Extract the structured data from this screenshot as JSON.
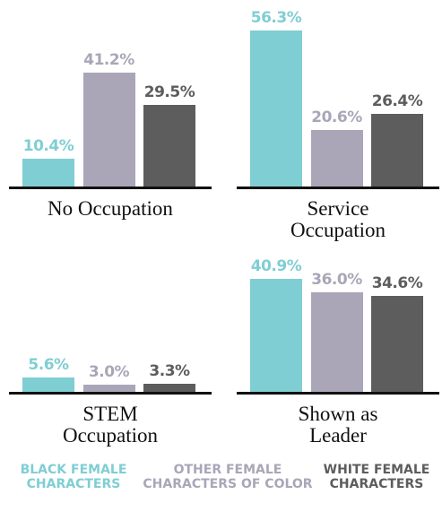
{
  "chart_data": [
    {
      "type": "bar",
      "title": "No Occupation",
      "values": [
        10.4,
        41.2,
        29.5
      ],
      "value_labels": [
        "10.4%",
        "41.2%",
        "29.5%"
      ],
      "ylim": [
        0,
        60
      ]
    },
    {
      "type": "bar",
      "title": "Service Occupation",
      "values": [
        56.3,
        20.6,
        26.4
      ],
      "value_labels": [
        "56.3%",
        "20.6%",
        "26.4%"
      ],
      "ylim": [
        0,
        60
      ]
    },
    {
      "type": "bar",
      "title": "STEM Occupation",
      "values": [
        5.6,
        3.0,
        3.3
      ],
      "value_labels": [
        "5.6%",
        "3.0%",
        "3.3%"
      ],
      "ylim": [
        0,
        60
      ]
    },
    {
      "type": "bar",
      "title": "Shown as Leader",
      "values": [
        40.9,
        36.0,
        34.6
      ],
      "value_labels": [
        "40.9%",
        "36.0%",
        "34.6%"
      ],
      "ylim": [
        0,
        60
      ]
    }
  ],
  "legend": [
    {
      "name": "BLACK FEMALE CHARACTERS",
      "color": "#7fced3"
    },
    {
      "name": "OTHER FEMALE CHARACTERS OF COLOR",
      "color": "#aaa6b8"
    },
    {
      "name": "WHITE FEMALE CHARACTERS",
      "color": "#5d5d5d"
    }
  ]
}
